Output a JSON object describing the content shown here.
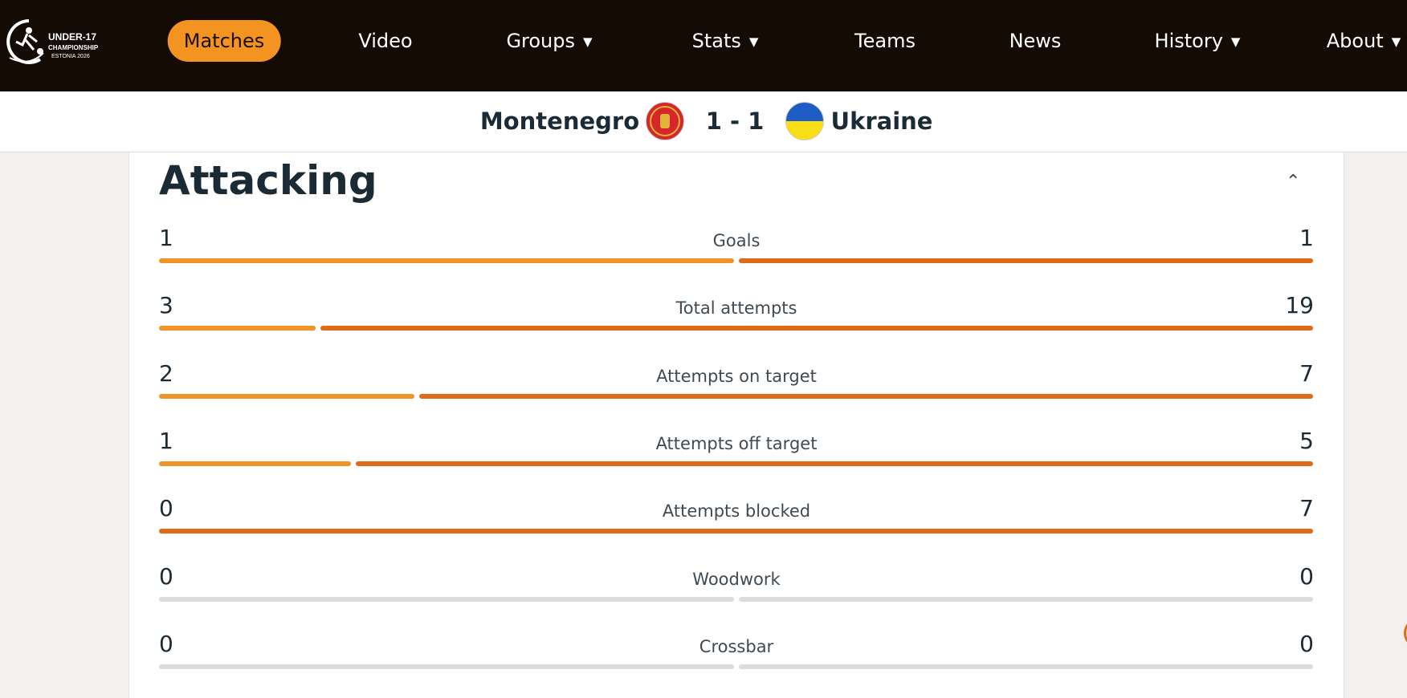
{
  "brand": {
    "logo_text": "UEFA UNDER-17 CHAMPIONSHIP ESTONIA 2026"
  },
  "nav": {
    "items": [
      {
        "label": "Matches",
        "active": true,
        "dropdown": false
      },
      {
        "label": "Video",
        "dropdown": false
      },
      {
        "label": "Groups",
        "dropdown": true
      },
      {
        "label": "Stats",
        "dropdown": true
      },
      {
        "label": "Teams",
        "dropdown": false
      },
      {
        "label": "News",
        "dropdown": false
      },
      {
        "label": "History",
        "dropdown": true
      },
      {
        "label": "About",
        "dropdown": true
      }
    ]
  },
  "match": {
    "home": "Montenegro",
    "away": "Ukraine",
    "score": "1 - 1"
  },
  "section": {
    "title": "Attacking",
    "collapse_icon": "chevron-up-icon"
  },
  "colors": {
    "home_bar": "#ef9528",
    "away_bar": "#e06a17",
    "empty_bar": "#dcdcdc",
    "accent": "#f39420"
  },
  "stats": [
    {
      "label": "Goals",
      "home": 1,
      "away": 1
    },
    {
      "label": "Total attempts",
      "home": 3,
      "away": 19
    },
    {
      "label": "Attempts on target",
      "home": 2,
      "away": 7
    },
    {
      "label": "Attempts off target",
      "home": 1,
      "away": 5
    },
    {
      "label": "Attempts blocked",
      "home": 0,
      "away": 7
    },
    {
      "label": "Woodwork",
      "home": 0,
      "away": 0
    },
    {
      "label": "Crossbar",
      "home": 0,
      "away": 0
    }
  ]
}
